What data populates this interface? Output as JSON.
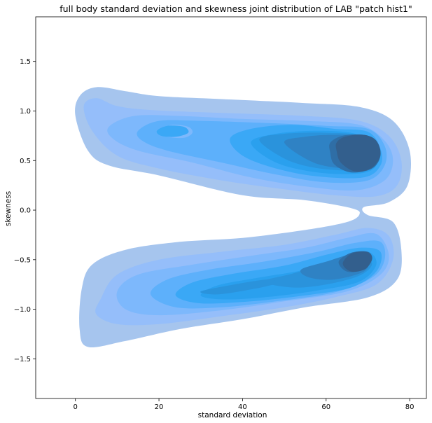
{
  "chart_data": {
    "type": "kde-contour",
    "title": "full body standard deviation and skewness joint distribution of LAB \"patch hist1\"",
    "xlabel": "standard deviation",
    "ylabel": "skewness",
    "xlim": [
      -9.5,
      84
    ],
    "ylim": [
      -1.9,
      1.95
    ],
    "xticks": [
      0,
      20,
      40,
      60,
      80
    ],
    "yticks": [
      -1.5,
      -1.0,
      -0.5,
      0.0,
      0.5,
      1.0,
      1.5
    ],
    "grid": false,
    "fill_colors": [
      "#a6c5ee",
      "#95befa",
      "#7db8fc",
      "#5db0fb",
      "#3aa8f6",
      "#2aa0ee",
      "#2a93dc",
      "#2f82c4",
      "#2f6ea6",
      "#335f8d"
    ],
    "levels": [
      {
        "level": 1,
        "regions": [
          [
            [
              0,
              0.95
            ],
            [
              1,
              1.15
            ],
            [
              5,
              1.24
            ],
            [
              12,
              1.2
            ],
            [
              20,
              1.15
            ],
            [
              35,
              1.12
            ],
            [
              55,
              1.08
            ],
            [
              68,
              1.04
            ],
            [
              76,
              0.9
            ],
            [
              80,
              0.6
            ],
            [
              79.5,
              0.25
            ],
            [
              75,
              0.08
            ],
            [
              69,
              0.03
            ],
            [
              70,
              -0.05
            ],
            [
              76,
              -0.12
            ],
            [
              78,
              -0.4
            ],
            [
              77,
              -0.7
            ],
            [
              70,
              -0.88
            ],
            [
              55,
              -0.98
            ],
            [
              40,
              -1.1
            ],
            [
              25,
              -1.2
            ],
            [
              12,
              -1.32
            ],
            [
              3,
              -1.38
            ],
            [
              1,
              -1.2
            ],
            [
              1.5,
              -0.8
            ],
            [
              4,
              -0.55
            ],
            [
              12,
              -0.4
            ],
            [
              25,
              -0.32
            ],
            [
              40,
              -0.28
            ],
            [
              55,
              -0.2
            ],
            [
              65,
              -0.12
            ],
            [
              68,
              -0.04
            ],
            [
              66,
              0.02
            ],
            [
              55,
              0.1
            ],
            [
              40,
              0.15
            ],
            [
              20,
              0.35
            ],
            [
              8,
              0.45
            ],
            [
              3,
              0.6
            ]
          ]
        ]
      },
      {
        "level": 2,
        "regions": [
          [
            [
              2,
              1.05
            ],
            [
              5,
              1.13
            ],
            [
              10,
              1.05
            ],
            [
              18,
              1.01
            ],
            [
              35,
              0.98
            ],
            [
              55,
              0.95
            ],
            [
              68,
              0.9
            ],
            [
              75,
              0.75
            ],
            [
              78,
              0.5
            ],
            [
              77,
              0.25
            ],
            [
              72,
              0.14
            ],
            [
              62,
              0.15
            ],
            [
              50,
              0.21
            ],
            [
              35,
              0.3
            ],
            [
              20,
              0.42
            ],
            [
              10,
              0.55
            ],
            [
              4,
              0.8
            ]
          ],
          [
            [
              6,
              -0.9
            ],
            [
              10,
              -0.65
            ],
            [
              20,
              -0.5
            ],
            [
              35,
              -0.42
            ],
            [
              50,
              -0.35
            ],
            [
              62,
              -0.25
            ],
            [
              70,
              -0.18
            ],
            [
              75,
              -0.26
            ],
            [
              76,
              -0.5
            ],
            [
              72,
              -0.75
            ],
            [
              62,
              -0.88
            ],
            [
              50,
              -0.98
            ],
            [
              35,
              -1.07
            ],
            [
              20,
              -1.15
            ],
            [
              10,
              -1.15
            ],
            [
              5,
              -1.05
            ]
          ]
        ]
      },
      {
        "level": 3,
        "regions": [
          [
            [
              8,
              0.84
            ],
            [
              14,
              0.95
            ],
            [
              25,
              0.95
            ],
            [
              40,
              0.92
            ],
            [
              55,
              0.9
            ],
            [
              68,
              0.86
            ],
            [
              74,
              0.7
            ],
            [
              76,
              0.5
            ],
            [
              74,
              0.3
            ],
            [
              67,
              0.2
            ],
            [
              55,
              0.24
            ],
            [
              42,
              0.33
            ],
            [
              28,
              0.48
            ],
            [
              15,
              0.6
            ],
            [
              9,
              0.72
            ]
          ],
          [
            [
              10,
              -0.82
            ],
            [
              15,
              -0.65
            ],
            [
              28,
              -0.55
            ],
            [
              42,
              -0.46
            ],
            [
              55,
              -0.38
            ],
            [
              65,
              -0.28
            ],
            [
              72,
              -0.24
            ],
            [
              75,
              -0.45
            ],
            [
              73,
              -0.65
            ],
            [
              65,
              -0.82
            ],
            [
              50,
              -0.92
            ],
            [
              35,
              -1.01
            ],
            [
              20,
              -1.06
            ],
            [
              12,
              -1.0
            ]
          ]
        ]
      },
      {
        "level": 4,
        "regions": [
          [
            [
              15,
              0.8
            ],
            [
              20,
              0.9
            ],
            [
              30,
              0.9
            ],
            [
              45,
              0.88
            ],
            [
              60,
              0.85
            ],
            [
              70,
              0.82
            ],
            [
              74,
              0.65
            ],
            [
              74,
              0.45
            ],
            [
              70,
              0.3
            ],
            [
              60,
              0.28
            ],
            [
              48,
              0.36
            ],
            [
              35,
              0.48
            ],
            [
              22,
              0.6
            ],
            [
              16,
              0.7
            ]
          ],
          [
            [
              18,
              -0.85
            ],
            [
              22,
              -0.7
            ],
            [
              32,
              -0.6
            ],
            [
              45,
              -0.52
            ],
            [
              58,
              -0.42
            ],
            [
              67,
              -0.33
            ],
            [
              73,
              -0.32
            ],
            [
              74,
              -0.5
            ],
            [
              71,
              -0.68
            ],
            [
              62,
              -0.83
            ],
            [
              48,
              -0.92
            ],
            [
              35,
              -0.98
            ],
            [
              24,
              -0.98
            ]
          ]
        ]
      },
      {
        "level": 5,
        "regions": [
          [
            [
              37,
              0.72
            ],
            [
              42,
              0.82
            ],
            [
              52,
              0.86
            ],
            [
              62,
              0.82
            ],
            [
              70,
              0.79
            ],
            [
              73,
              0.62
            ],
            [
              73,
              0.45
            ],
            [
              69,
              0.33
            ],
            [
              58,
              0.34
            ],
            [
              48,
              0.42
            ],
            [
              40,
              0.55
            ]
          ],
          [
            [
              24,
              -0.86
            ],
            [
              28,
              -0.73
            ],
            [
              38,
              -0.64
            ],
            [
              50,
              -0.56
            ],
            [
              60,
              -0.45
            ],
            [
              68,
              -0.38
            ],
            [
              73,
              -0.42
            ],
            [
              72,
              -0.62
            ],
            [
              66,
              -0.78
            ],
            [
              55,
              -0.86
            ],
            [
              42,
              -0.92
            ],
            [
              30,
              -0.94
            ]
          ]
        ]
      },
      {
        "level": 6,
        "regions": [
          [
            [
              42,
              0.68
            ],
            [
              48,
              0.77
            ],
            [
              58,
              0.8
            ],
            [
              67,
              0.77
            ],
            [
              72,
              0.65
            ],
            [
              72,
              0.45
            ],
            [
              68,
              0.37
            ],
            [
              58,
              0.38
            ],
            [
              48,
              0.48
            ]
          ],
          [
            [
              30,
              -0.86
            ],
            [
              34,
              -0.76
            ],
            [
              44,
              -0.68
            ],
            [
              55,
              -0.6
            ],
            [
              64,
              -0.48
            ],
            [
              70,
              -0.42
            ],
            [
              72,
              -0.55
            ],
            [
              68,
              -0.72
            ],
            [
              58,
              -0.81
            ],
            [
              45,
              -0.88
            ],
            [
              35,
              -0.9
            ]
          ]
        ]
      },
      {
        "level": 7,
        "regions": [
          [
            [
              44,
              0.71
            ],
            [
              50,
              0.77
            ],
            [
              60,
              0.78
            ],
            [
              68,
              0.75
            ],
            [
              71,
              0.6
            ],
            [
              70,
              0.45
            ],
            [
              66,
              0.4
            ],
            [
              57,
              0.43
            ],
            [
              50,
              0.52
            ]
          ],
          [
            [
              45,
              -0.72
            ],
            [
              52,
              -0.64
            ],
            [
              61,
              -0.53
            ],
            [
              68,
              -0.46
            ],
            [
              71,
              -0.54
            ],
            [
              68,
              -0.66
            ],
            [
              60,
              -0.75
            ],
            [
              52,
              -0.78
            ]
          ],
          [
            [
              30,
              -0.82
            ],
            [
              38,
              -0.75
            ],
            [
              46,
              -0.7
            ],
            [
              48,
              -0.74
            ],
            [
              42,
              -0.8
            ],
            [
              34,
              -0.85
            ]
          ]
        ]
      },
      {
        "level": 8,
        "regions": [
          [
            [
              50,
              0.68
            ],
            [
              55,
              0.74
            ],
            [
              62,
              0.76
            ],
            [
              68,
              0.74
            ],
            [
              71,
              0.6
            ],
            [
              70,
              0.45
            ],
            [
              65,
              0.42
            ],
            [
              57,
              0.48
            ]
          ],
          [
            [
              54,
              -0.6
            ],
            [
              60,
              -0.52
            ],
            [
              66,
              -0.45
            ],
            [
              70,
              -0.5
            ],
            [
              69,
              -0.62
            ],
            [
              62,
              -0.7
            ],
            [
              56,
              -0.68
            ]
          ]
        ]
      },
      {
        "level": 9,
        "regions": [
          [
            [
              61,
              0.68
            ],
            [
              64,
              0.75
            ],
            [
              69,
              0.76
            ],
            [
              72,
              0.7
            ],
            [
              73,
              0.55
            ],
            [
              71,
              0.42
            ],
            [
              66,
              0.38
            ],
            [
              62,
              0.46
            ],
            [
              61,
              0.58
            ]
          ],
          [
            [
              63,
              -0.52
            ],
            [
              66,
              -0.43
            ],
            [
              70,
              -0.42
            ],
            [
              71,
              -0.5
            ],
            [
              69,
              -0.6
            ],
            [
              65,
              -0.62
            ]
          ]
        ]
      },
      {
        "level": 10,
        "regions": [
          [
            [
              62.5,
              0.68
            ],
            [
              64.5,
              0.74
            ],
            [
              69,
              0.76
            ],
            [
              72,
              0.7
            ],
            [
              73,
              0.56
            ],
            [
              71,
              0.43
            ],
            [
              67,
              0.39
            ],
            [
              63.5,
              0.48
            ],
            [
              62.5,
              0.6
            ]
          ],
          [
            [
              64,
              -0.54
            ],
            [
              66,
              -0.44
            ],
            [
              69.5,
              -0.42
            ],
            [
              71,
              -0.48
            ],
            [
              69.5,
              -0.59
            ],
            [
              66,
              -0.62
            ]
          ]
        ]
      },
      {
        "level": 3,
        "regions": [
          [
            [
              21,
              0.8
            ],
            [
              23,
              0.86
            ],
            [
              27,
              0.84
            ],
            [
              28,
              0.78
            ],
            [
              26,
              0.73
            ],
            [
              22,
              0.74
            ]
          ]
        ]
      },
      {
        "level": 5,
        "regions": [
          [
            [
              19.5,
              0.8
            ],
            [
              22,
              0.85
            ],
            [
              26,
              0.84
            ],
            [
              27,
              0.78
            ],
            [
              24,
              0.74
            ],
            [
              20.5,
              0.75
            ]
          ]
        ]
      }
    ]
  }
}
